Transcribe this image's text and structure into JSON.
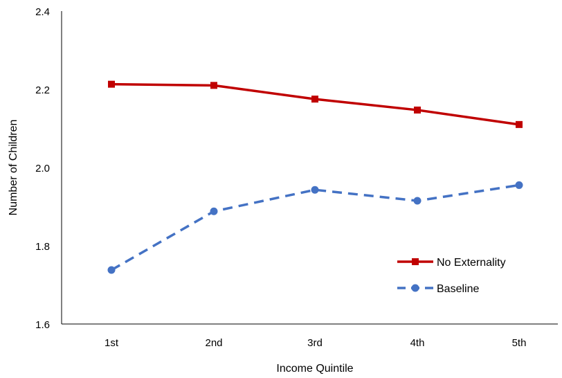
{
  "chart_data": {
    "type": "line",
    "title": "",
    "xlabel": "Income Quintile",
    "ylabel": "Number of Children",
    "categories": [
      "1st",
      "2nd",
      "3rd",
      "4th",
      "5th"
    ],
    "ylim": [
      1.6,
      2.4
    ],
    "yticks": [
      "1.6",
      "1.8",
      "2.0",
      "2.2",
      "2.4"
    ],
    "grid": false,
    "legend_position": "lower-right",
    "series": [
      {
        "name": "No Externality",
        "values": [
          2.213,
          2.21,
          2.175,
          2.147,
          2.11
        ],
        "color": "#C00000",
        "line_style": "solid",
        "marker": "square"
      },
      {
        "name": "Baseline",
        "values": [
          1.738,
          1.888,
          1.943,
          1.915,
          1.955
        ],
        "color": "#4472C4",
        "line_style": "dashed",
        "marker": "circle"
      }
    ]
  }
}
